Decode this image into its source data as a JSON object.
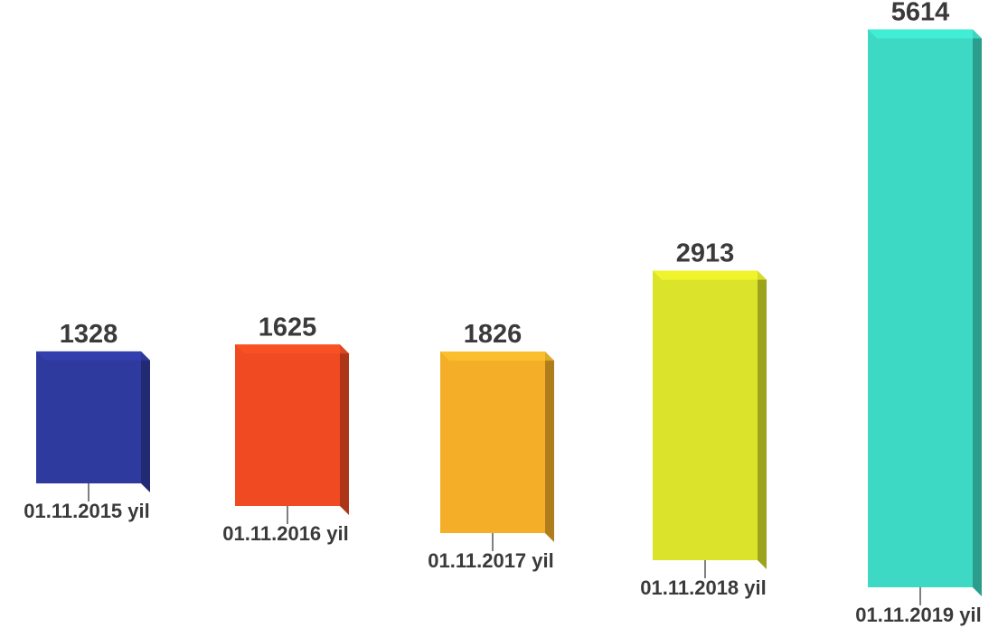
{
  "chart_data": {
    "type": "bar",
    "title": "",
    "xlabel": "",
    "ylabel": "",
    "categories": [
      "01.11.2015 yil",
      "01.11.2016 yil",
      "01.11.2017 yil",
      "01.11.2018 yil",
      "01.11.2019 yil"
    ],
    "values": [
      1328,
      1625,
      1826,
      2913,
      5614
    ],
    "value_labels": [
      "1328",
      "1625",
      "1826",
      "2913",
      "5614"
    ],
    "colors": [
      "#2e3a9e",
      "#f04a22",
      "#f5ae28",
      "#dbe32a",
      "#3dd9c4"
    ],
    "grid": false,
    "legend": "none",
    "style": "3d-bars"
  }
}
